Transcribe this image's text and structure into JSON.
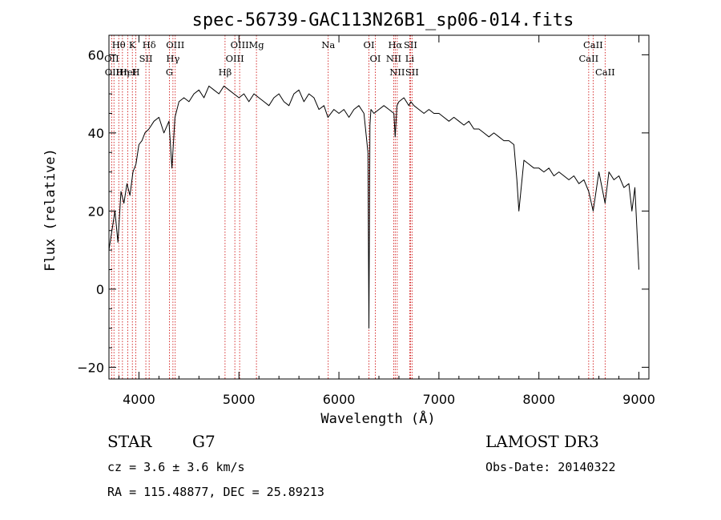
{
  "chart_data": {
    "type": "line",
    "title": "spec-56739-GAC113N26B1_sp06-014.fits",
    "xlabel": "Wavelength (Å)",
    "ylabel": "Flux (relative)",
    "xlim": [
      3700,
      9100
    ],
    "ylim": [
      -23,
      65
    ],
    "xticks": [
      4000,
      5000,
      6000,
      7000,
      8000,
      9000
    ],
    "yticks": [
      -20,
      0,
      20,
      40,
      60
    ],
    "grid": false,
    "series": [
      {
        "x": [
          3700,
          3730,
          3760,
          3790,
          3820,
          3850,
          3880,
          3910,
          3940,
          3970,
          4000,
          4030,
          4060,
          4100,
          4150,
          4200,
          4250,
          4300,
          4330,
          4360,
          4400,
          4450,
          4500,
          4550,
          4600,
          4650,
          4700,
          4750,
          4800,
          4850,
          4900,
          4950,
          5000,
          5050,
          5100,
          5150,
          5200,
          5250,
          5300,
          5350,
          5400,
          5450,
          5500,
          5550,
          5600,
          5650,
          5700,
          5750,
          5800,
          5850,
          5890,
          5950,
          6000,
          6050,
          6100,
          6150,
          6200,
          6250,
          6290,
          6300,
          6310,
          6320,
          6350,
          6400,
          6450,
          6500,
          6550,
          6563,
          6580,
          6600,
          6650,
          6700,
          6720,
          6750,
          6800,
          6850,
          6900,
          6950,
          7000,
          7050,
          7100,
          7150,
          7200,
          7250,
          7300,
          7350,
          7400,
          7450,
          7500,
          7550,
          7600,
          7650,
          7700,
          7750,
          7780,
          7800,
          7850,
          7900,
          7950,
          8000,
          8050,
          8100,
          8150,
          8200,
          8250,
          8300,
          8350,
          8400,
          8450,
          8498,
          8542,
          8600,
          8662,
          8700,
          8750,
          8800,
          8850,
          8900,
          8930,
          8960,
          9000
        ],
        "y": [
          10,
          15,
          20,
          12,
          25,
          22,
          27,
          24,
          30,
          32,
          37,
          38,
          40,
          41,
          43,
          44,
          40,
          43,
          31,
          44,
          48,
          49,
          48,
          50,
          51,
          49,
          52,
          51,
          50,
          52,
          51,
          50,
          49,
          50,
          48,
          50,
          49,
          48,
          47,
          49,
          50,
          48,
          47,
          50,
          51,
          48,
          50,
          49,
          46,
          47,
          44,
          46,
          45,
          46,
          44,
          46,
          47,
          45,
          35,
          -10,
          42,
          46,
          45,
          46,
          47,
          46,
          45,
          39,
          47,
          48,
          49,
          47,
          48,
          47,
          46,
          45,
          46,
          45,
          45,
          44,
          43,
          44,
          43,
          42,
          43,
          41,
          41,
          40,
          39,
          40,
          39,
          38,
          38,
          37,
          28,
          20,
          33,
          32,
          31,
          31,
          30,
          31,
          29,
          30,
          29,
          28,
          29,
          27,
          28,
          25,
          20,
          30,
          22,
          30,
          28,
          29,
          26,
          27,
          20,
          26,
          5
        ]
      }
    ],
    "annotations": [
      {
        "label": "Hθ",
        "x": 3798
      },
      {
        "label": "OII",
        "x": 3727
      },
      {
        "label": "OIII",
        "x": 3750
      },
      {
        "label": "K",
        "x": 3934
      },
      {
        "label": "HeI",
        "x": 3889
      },
      {
        "label": "Hη",
        "x": 3835
      },
      {
        "label": "Hδ",
        "x": 4102
      },
      {
        "label": "SII",
        "x": 4069
      },
      {
        "label": "H",
        "x": 3969
      },
      {
        "label": "OIII",
        "x": 4363
      },
      {
        "label": "Hγ",
        "x": 4340
      },
      {
        "label": "G",
        "x": 4305
      },
      {
        "label": "OIII",
        "x": 5007
      },
      {
        "label": "OIII",
        "x": 4959
      },
      {
        "label": "Hβ",
        "x": 4861
      },
      {
        "label": "Mg",
        "x": 5175
      },
      {
        "label": "Na",
        "x": 5893
      },
      {
        "label": "OI",
        "x": 6300
      },
      {
        "label": "OI",
        "x": 6364
      },
      {
        "label": "Hα",
        "x": 6563
      },
      {
        "label": "NII",
        "x": 6548
      },
      {
        "label": "NII",
        "x": 6583
      },
      {
        "label": "SII",
        "x": 6716
      },
      {
        "label": "Li",
        "x": 6708
      },
      {
        "label": "SII",
        "x": 6731
      },
      {
        "label": "CaII",
        "x": 8542
      },
      {
        "label": "CaII",
        "x": 8498
      },
      {
        "label": "CaII",
        "x": 8662
      }
    ]
  },
  "info": {
    "class": "STAR",
    "subclass": "G7",
    "survey": "LAMOST DR3",
    "cz": "cz = 3.6 ± 3.6 km/s",
    "obs_date": "Obs-Date: 20140322",
    "radec": "RA = 115.48877, DEC =  25.89213"
  },
  "colors": {
    "spectrum": "#000000",
    "line_markers": "#cc0000"
  }
}
